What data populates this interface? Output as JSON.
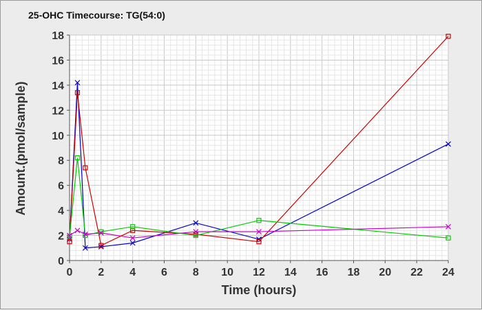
{
  "chart_data": {
    "type": "line",
    "title": "25-OHC Timecourse: TG(54:0)",
    "xlabel": "Time (hours)",
    "ylabel": "Amount.(pmol/sample)",
    "xlim": [
      0,
      24
    ],
    "ylim": [
      0,
      18
    ],
    "x_ticks": [
      0,
      2,
      4,
      6,
      8,
      10,
      12,
      14,
      16,
      18,
      20,
      22,
      24
    ],
    "y_ticks": [
      0,
      2,
      4,
      6,
      8,
      10,
      12,
      14,
      16,
      18
    ],
    "grid": true,
    "legend": "none",
    "series": [
      {
        "color": "#0000cc",
        "marker": "x",
        "points": [
          [
            0,
            1.7
          ],
          [
            0.5,
            14.2
          ],
          [
            1,
            1.0
          ],
          [
            2,
            1.1
          ],
          [
            4,
            1.4
          ],
          [
            8,
            3.0
          ],
          [
            12,
            1.7
          ],
          [
            24,
            9.3
          ]
        ]
      },
      {
        "color": "#cc0000",
        "marker": "square",
        "points": [
          [
            0,
            1.5
          ],
          [
            0.5,
            13.4
          ],
          [
            1,
            7.4
          ],
          [
            2,
            1.2
          ],
          [
            4,
            2.4
          ],
          [
            8,
            2.1
          ],
          [
            12,
            1.5
          ],
          [
            24,
            17.9
          ]
        ]
      },
      {
        "color": "#00cc00",
        "marker": "square",
        "points": [
          [
            0,
            1.9
          ],
          [
            0.5,
            8.2
          ],
          [
            1,
            2.0
          ],
          [
            2,
            2.3
          ],
          [
            4,
            2.7
          ],
          [
            8,
            2.0
          ],
          [
            12,
            3.2
          ],
          [
            24,
            1.8
          ]
        ]
      },
      {
        "color": "#cc00cc",
        "marker": "x",
        "points": [
          [
            0,
            2.0
          ],
          [
            0.5,
            2.4
          ],
          [
            1,
            2.1
          ],
          [
            2,
            2.2
          ],
          [
            4,
            1.8
          ],
          [
            8,
            2.3
          ],
          [
            12,
            2.3
          ],
          [
            24,
            2.7
          ]
        ]
      }
    ]
  }
}
